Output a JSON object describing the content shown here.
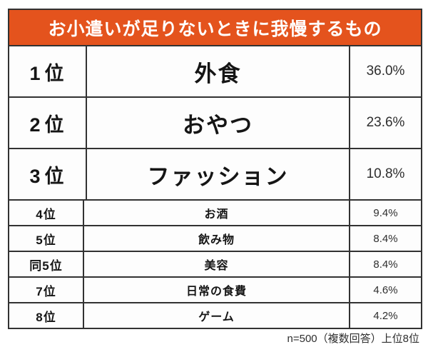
{
  "header": {
    "title": "お小遣いが足りないときに我慢するもの",
    "bg_color": "#E4531D",
    "text_color": "#ffffff"
  },
  "table": {
    "border_color": "#323232",
    "rows": [
      {
        "rank": "1位",
        "item": "外食",
        "percent": "36.0%"
      },
      {
        "rank": "2位",
        "item": "おやつ",
        "percent": "23.6%"
      },
      {
        "rank": "3位",
        "item": "ファッション",
        "percent": "10.8%"
      },
      {
        "rank": "4位",
        "item": "お酒",
        "percent": "9.4%"
      },
      {
        "rank": "5位",
        "item": "飲み物",
        "percent": "8.4%"
      },
      {
        "rank": "同5位",
        "item": "美容",
        "percent": "8.4%"
      },
      {
        "rank": "7位",
        "item": "日常の食費",
        "percent": "4.6%"
      },
      {
        "rank": "8位",
        "item": "ゲーム",
        "percent": "4.2%"
      }
    ]
  },
  "footer": {
    "note": "n=500（複数回答）上位8位"
  },
  "chart_data": {
    "type": "table",
    "title": "お小遣いが足りないときに我慢するもの",
    "ranks": [
      "1位",
      "2位",
      "3位",
      "4位",
      "5位",
      "同5位",
      "7位",
      "8位"
    ],
    "categories": [
      "外食",
      "おやつ",
      "ファッション",
      "お酒",
      "飲み物",
      "美容",
      "日常の食費",
      "ゲーム"
    ],
    "values": [
      36.0,
      23.6,
      10.8,
      9.4,
      8.4,
      8.4,
      4.6,
      4.2
    ],
    "unit": "%",
    "note": "n=500（複数回答）上位8位"
  }
}
